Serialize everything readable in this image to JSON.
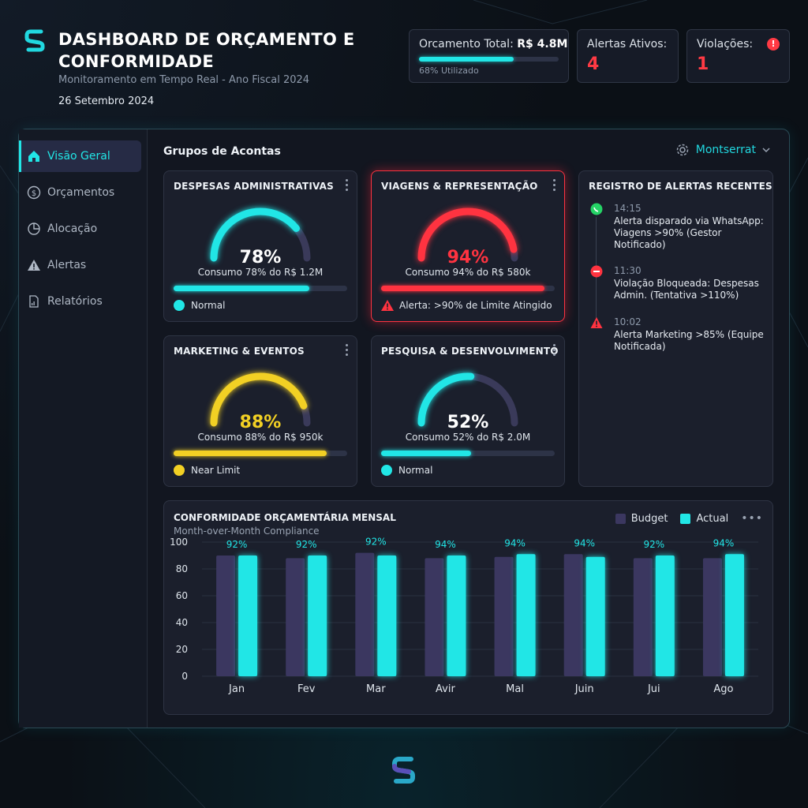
{
  "header": {
    "title": "DASHBOARD DE ORÇAMENTO E CONFORMIDADE",
    "subtitle": "Monitoramento em Tempo Real - Ano Fiscal 2024",
    "date": "26 Setembro 2024",
    "logo_icon": "s-logo-icon"
  },
  "kpis": {
    "budget": {
      "label": "Orcamento Total:",
      "value": "R$ 4.8M",
      "used_text": "68% Utilizado",
      "used_fraction": 0.68
    },
    "alerts": {
      "label": "Alertas Ativos:",
      "value": "4"
    },
    "violations": {
      "label": "Violações:",
      "value": "1",
      "icon": "warning-circle-icon"
    }
  },
  "sidebar": {
    "items": [
      {
        "label": "Visão Geral",
        "icon": "home-icon",
        "active": true
      },
      {
        "label": "Orçamentos",
        "icon": "dollar-circle-icon",
        "active": false
      },
      {
        "label": "Alocação",
        "icon": "pie-chart-icon",
        "active": false
      },
      {
        "label": "Alertas",
        "icon": "warning-icon",
        "active": false
      },
      {
        "label": "Relatórios",
        "icon": "report-icon",
        "active": false
      }
    ]
  },
  "main": {
    "group_title": "Grupos de Acontas",
    "region_selector": "Montserrat"
  },
  "cards": [
    {
      "title": "DESPESAS ADMINISTRATIVAS",
      "percent": 78,
      "percent_text": "78%",
      "consumo": "Consumo 78% do R$ 1.2M",
      "status": "Normal",
      "status_type": "normal",
      "color": "#21e6e6"
    },
    {
      "title": "VIAGENS & REPRESENTAÇÃO",
      "percent": 94,
      "percent_text": "94%",
      "consumo": "Consumo 94% do R$ 580k",
      "status": "Alerta: >90% de Limite Atingido",
      "status_type": "alert",
      "color": "#ff3340"
    },
    {
      "title": "MARKETING & EVENTOS",
      "percent": 88,
      "percent_text": "88%",
      "consumo": "Consumo 88% do R$ 950k",
      "status": "Near Limit",
      "status_type": "warn",
      "color": "#f2d024"
    },
    {
      "title": "PESQUISA & DESENVOLVIMENTO",
      "percent": 52,
      "percent_text": "52%",
      "consumo": "Consumo 52% do R$ 2.0M",
      "status": "Normal",
      "status_type": "normal",
      "color": "#21e6e6"
    }
  ],
  "alert_log": {
    "title": "REGISTRO DE ALERTAS RECENTES",
    "items": [
      {
        "time": "14:15",
        "text": "Alerta disparado via WhatsApp: Viagens >90% (Gestor Notificado)",
        "icon": "whatsapp-icon"
      },
      {
        "time": "11:30",
        "text": "Violação Bloqueada: Despesas Admin. (Tentativa >110%)",
        "icon": "blocked-icon"
      },
      {
        "time": "10:02",
        "text": "Alerta Marketing >85% (Equipe Notificada)",
        "icon": "warning-icon"
      }
    ]
  },
  "chart": {
    "title": "CONFORMIDADE ORÇAMENTÁRIA MENSAL",
    "subtitle": "Month-over-Month Compliance",
    "legend_budget": "Budget",
    "legend_actual": "Actual",
    "colors": {
      "budget": "#3b3760",
      "actual": "#21e6e6"
    }
  },
  "chart_data": {
    "type": "bar",
    "categories": [
      "Jan",
      "Fev",
      "Mar",
      "Avir",
      "Mal",
      "Juin",
      "Jui",
      "Ago"
    ],
    "series": [
      {
        "name": "Budget",
        "values": [
          90,
          88,
          92,
          88,
          89,
          91,
          88,
          88
        ]
      },
      {
        "name": "Actual",
        "values": [
          90,
          90,
          90,
          90,
          91,
          89,
          90,
          91
        ]
      }
    ],
    "data_labels": [
      "92%",
      "92%",
      "92%",
      "94%",
      "94%",
      "94%",
      "92%",
      "94%"
    ],
    "yticks": [
      0,
      20,
      40,
      60,
      80,
      100
    ],
    "ylim": [
      0,
      100
    ],
    "grid": true,
    "legend_position": "top-right"
  }
}
